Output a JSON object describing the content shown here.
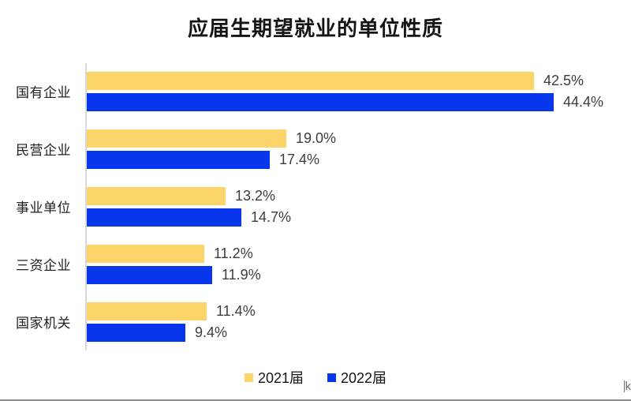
{
  "title": "应届生期望就业的单位性质",
  "colors": {
    "series_2021": "#FBD46A",
    "series_2022": "#0836EC",
    "axis_line": "#D9D9D9",
    "value_text": "#3D3D3D",
    "bottom_border": "#8F8F8F"
  },
  "chart_data": {
    "type": "bar",
    "orientation": "horizontal",
    "title": "应届生期望就业的单位性质",
    "categories": [
      "国有企业",
      "民营企业",
      "事业单位",
      "三资企业",
      "国家机关"
    ],
    "series": [
      {
        "name": "2021届",
        "color": "#FBD46A",
        "values": [
          42.5,
          19.0,
          13.2,
          11.2,
          11.4
        ]
      },
      {
        "name": "2022届",
        "color": "#0836EC",
        "values": [
          44.4,
          17.4,
          14.7,
          11.9,
          9.4
        ]
      }
    ],
    "value_labels": [
      [
        "42.5%",
        "19.0%",
        "13.2%",
        "11.2%",
        "11.4%"
      ],
      [
        "44.4%",
        "17.4%",
        "14.7%",
        "11.9%",
        "9.4%"
      ]
    ],
    "xlim": [
      0,
      51.8
    ],
    "grid": false,
    "legend_position": "bottom"
  },
  "artifact": {
    "glyph": "k"
  }
}
